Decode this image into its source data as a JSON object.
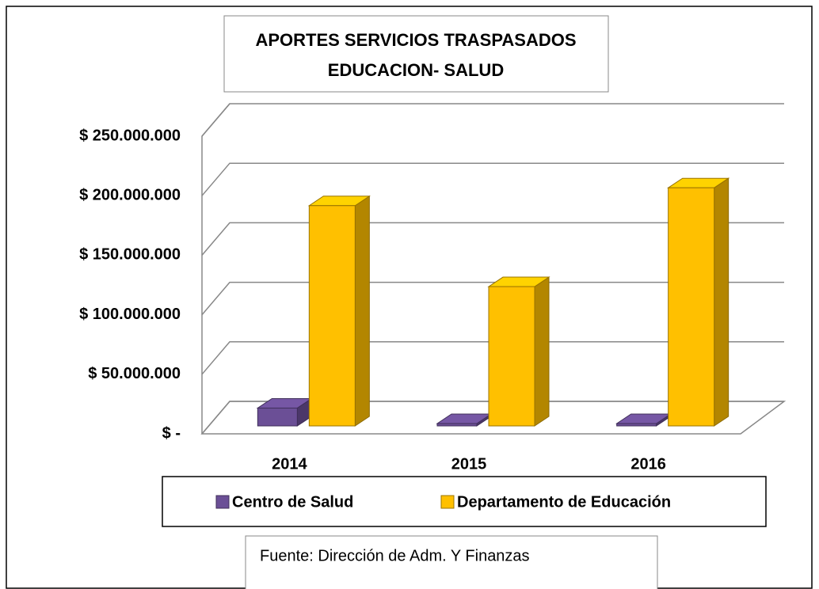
{
  "chart_data": {
    "type": "bar3d",
    "title": [
      "APORTES SERVICIOS TRASPASADOS",
      "EDUCACION- SALUD"
    ],
    "categories": [
      "2014",
      "2015",
      "2016"
    ],
    "series": [
      {
        "name": "Centro de Salud",
        "color": "#6b4f96",
        "values": [
          15000000,
          2000000,
          2000000
        ]
      },
      {
        "name": "Departamento de Educación",
        "color": "#ffc000",
        "values": [
          185000000,
          117000000,
          200000000
        ]
      }
    ],
    "ylim": [
      0,
      250000000
    ],
    "yticks": [
      {
        "value": 0,
        "label": "$ -"
      },
      {
        "value": 50000000,
        "label": "$ 50.000.000"
      },
      {
        "value": 100000000,
        "label": "$ 100.000.000"
      },
      {
        "value": 150000000,
        "label": "$ 150.000.000"
      },
      {
        "value": 200000000,
        "label": "$ 200.000.000"
      },
      {
        "value": 250000000,
        "label": "$ 250.000.000"
      }
    ],
    "grid": true,
    "source": "Fuente: Dirección de Adm. Y Finanzas"
  }
}
